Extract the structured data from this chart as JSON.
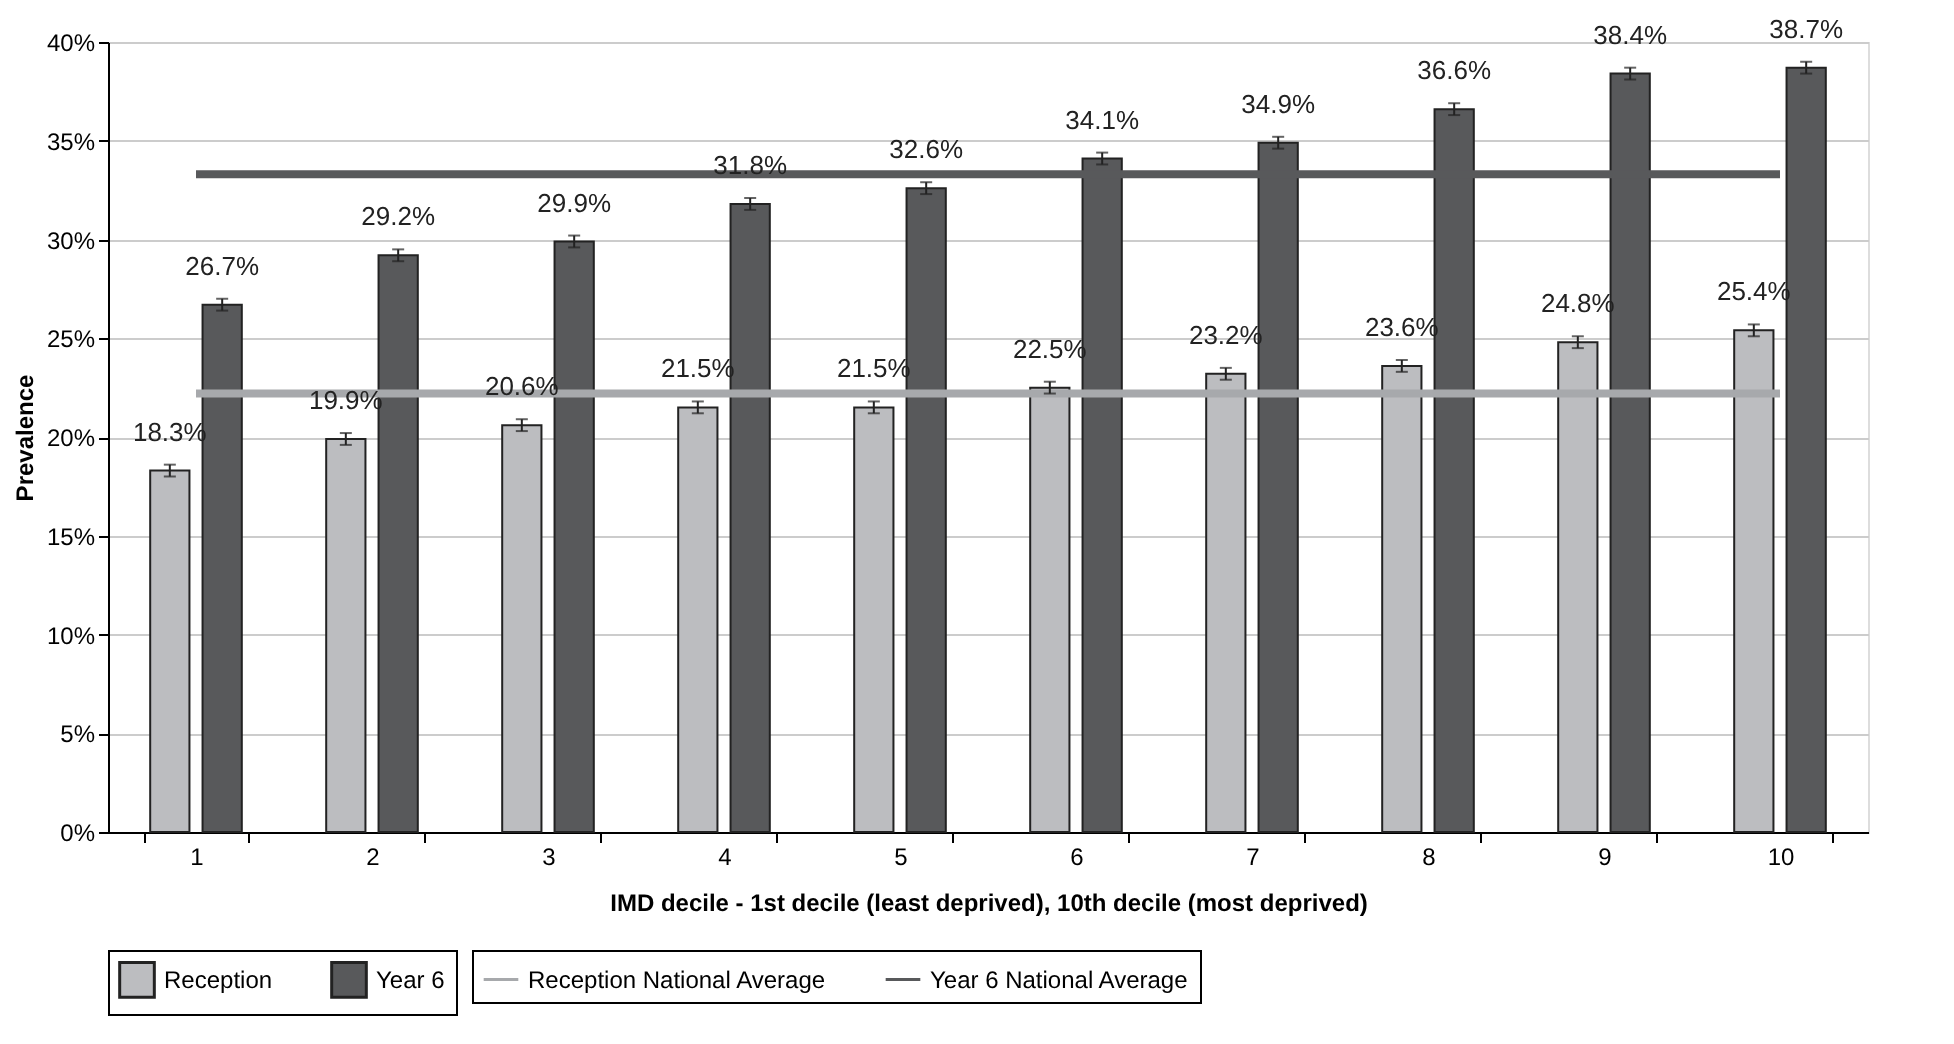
{
  "chart_data": {
    "type": "bar",
    "xlabel": "IMD decile - 1st decile (least deprived), 10th decile (most deprived)",
    "ylabel": "Prevalence",
    "categories": [
      "1",
      "2",
      "3",
      "4",
      "5",
      "6",
      "7",
      "8",
      "9",
      "10"
    ],
    "series": [
      {
        "name": "Reception",
        "color": "#bcbdc0",
        "values": [
          18.3,
          19.9,
          20.6,
          21.5,
          21.5,
          22.5,
          23.2,
          23.6,
          24.8,
          25.4
        ],
        "errors": [
          0.3,
          0.3,
          0.3,
          0.3,
          0.3,
          0.3,
          0.3,
          0.3,
          0.3,
          0.3
        ],
        "value_labels": [
          "18.3%",
          "19.9%",
          "20.6%",
          "21.5%",
          "21.5%",
          "22.5%",
          "23.2%",
          "23.6%",
          "24.8%",
          "25.4%"
        ]
      },
      {
        "name": "Year 6",
        "color": "#58595b",
        "values": [
          26.7,
          29.2,
          29.9,
          31.8,
          32.6,
          34.1,
          34.9,
          36.6,
          38.4,
          38.7
        ],
        "errors": [
          0.3,
          0.3,
          0.3,
          0.3,
          0.3,
          0.3,
          0.3,
          0.3,
          0.3,
          0.3
        ],
        "value_labels": [
          "26.7%",
          "29.2%",
          "29.9%",
          "31.8%",
          "32.6%",
          "34.1%",
          "34.9%",
          "36.6%",
          "38.4%",
          "38.7%"
        ]
      },
      {
        "name": "Reception National Average",
        "type": "line",
        "color": "#a7a9ac",
        "values": [
          22.2,
          22.2,
          22.2,
          22.2,
          22.2,
          22.2,
          22.2,
          22.2,
          22.2,
          22.2
        ]
      },
      {
        "name": "Year 6 National Average",
        "type": "line",
        "color": "#58595b",
        "values": [
          33.3,
          33.3,
          33.3,
          33.3,
          33.3,
          33.3,
          33.3,
          33.3,
          33.3,
          33.3
        ]
      }
    ],
    "ylim": [
      0,
      40
    ],
    "yticks": [
      {
        "value": 0,
        "label": "0%"
      },
      {
        "value": 5,
        "label": "5%"
      },
      {
        "value": 10,
        "label": "10%"
      },
      {
        "value": 15,
        "label": "15%"
      },
      {
        "value": 20,
        "label": "20%"
      },
      {
        "value": 25,
        "label": "25%"
      },
      {
        "value": 30,
        "label": "30%"
      },
      {
        "value": 35,
        "label": "35%"
      },
      {
        "value": 40,
        "label": "40%"
      }
    ],
    "grid": "y",
    "legend": "bottom"
  }
}
